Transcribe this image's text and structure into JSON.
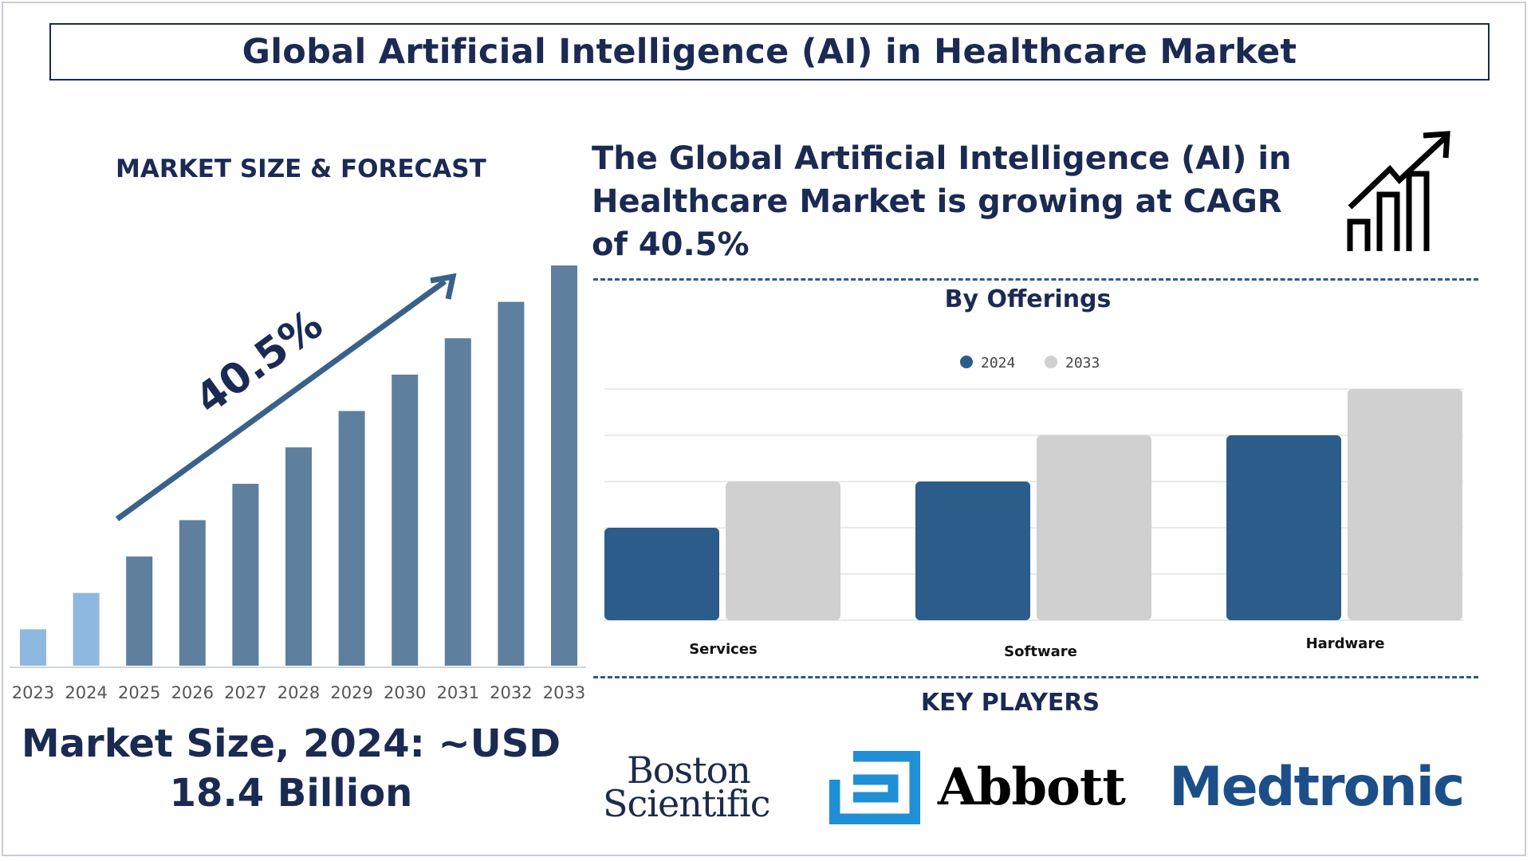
{
  "title": "Global Artificial Intelligence (AI) in Healthcare Market",
  "left_panel": {
    "heading": "MARKET SIZE & FORECAST",
    "market_size_line1": "Market Size, 2024: ~USD",
    "market_size_line2": "18.4 Billion"
  },
  "cagr_statement": "The Global Artificial Intelligence (AI) in Healthcare Market is growing at CAGR of 40.5%",
  "offerings_title": "By Offerings",
  "key_players_title": "KEY PLAYERS",
  "key_players": {
    "boston_line1": "Boston",
    "boston_line2": "Scientific",
    "abbott": "Abbott",
    "medtronic": "Medtronic"
  },
  "colors": {
    "navy": "#1b2a52",
    "bar_2023_2024": "#8fb8e0",
    "bar_forecast": "#5e7f9e",
    "arrow": "#3a6189",
    "series_2024": "#2b5c8a",
    "series_2033": "#d0d0d0",
    "abbott_blue": "#1f8fd6",
    "medtronic_blue": "#1c4f8a"
  },
  "icons": [
    "growth-chart-icon",
    "abbott-logo-icon"
  ],
  "chart_data": [
    {
      "type": "bar",
      "title": "MARKET SIZE & FORECAST",
      "categories": [
        "2023",
        "2024",
        "2025",
        "2026",
        "2027",
        "2028",
        "2029",
        "2030",
        "2031",
        "2032",
        "2033"
      ],
      "values": [
        1,
        2,
        3,
        4,
        5,
        6,
        7,
        8,
        9,
        10,
        11
      ],
      "annotation": "40.5%",
      "ylim": [
        0,
        11
      ],
      "grid": false,
      "legend": "none"
    },
    {
      "type": "bar",
      "title": "By Offerings",
      "categories": [
        "Services",
        "Software",
        "Hardware"
      ],
      "series": [
        {
          "name": "2024",
          "values": [
            2,
            3,
            4
          ]
        },
        {
          "name": "2033",
          "values": [
            3,
            4,
            5
          ]
        }
      ],
      "ylim": [
        0,
        5
      ],
      "grid": true,
      "legend": "top-center"
    }
  ]
}
